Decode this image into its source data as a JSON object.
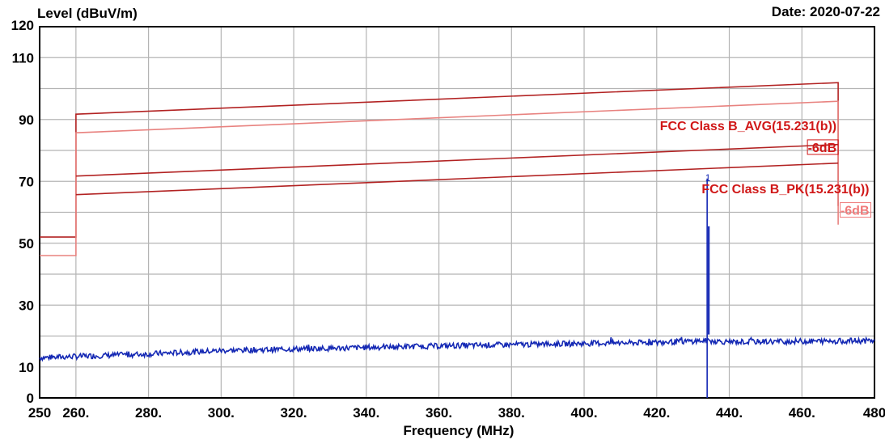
{
  "chart_data": {
    "type": "line",
    "ylabel": "Level (dBuV/m)",
    "xlabel": "Frequency (MHz)",
    "date_text": "Date: 2020-07-22",
    "xlim": [
      250,
      480
    ],
    "ylim": [
      0,
      120
    ],
    "x_ticks": [
      {
        "value": 250,
        "label": "250"
      },
      {
        "value": 260,
        "label": "260."
      },
      {
        "value": 280,
        "label": "280."
      },
      {
        "value": 300,
        "label": "300."
      },
      {
        "value": 320,
        "label": "320."
      },
      {
        "value": 340,
        "label": "340."
      },
      {
        "value": 360,
        "label": "360."
      },
      {
        "value": 380,
        "label": "380."
      },
      {
        "value": 400,
        "label": "400."
      },
      {
        "value": 420,
        "label": "420."
      },
      {
        "value": 440,
        "label": "440."
      },
      {
        "value": 460,
        "label": "460."
      },
      {
        "value": 480,
        "label": "480"
      }
    ],
    "x_grid": [
      260,
      280,
      300,
      320,
      340,
      360,
      380,
      400,
      420,
      440,
      460
    ],
    "y_ticks": [
      {
        "value": 0,
        "label": "0"
      },
      {
        "value": 10,
        "label": "10"
      },
      {
        "value": 30,
        "label": "30"
      },
      {
        "value": 50,
        "label": "50"
      },
      {
        "value": 70,
        "label": "70"
      },
      {
        "value": 90,
        "label": "90"
      },
      {
        "value": 110,
        "label": "110"
      },
      {
        "value": 120,
        "label": "120"
      }
    ],
    "y_grid": [
      10,
      20,
      30,
      40,
      50,
      60,
      70,
      80,
      90,
      100,
      110
    ],
    "grid": true,
    "limit_lines": [
      {
        "name": "PK limit",
        "color": "#b22222",
        "x": [
          250,
          260,
          260,
          470,
          470
        ],
        "y": [
          52,
          52,
          91.7,
          101.9,
          62
        ]
      },
      {
        "name": "PK limit -6dB",
        "color": "#e8827f",
        "x": [
          250,
          260,
          260,
          470,
          470
        ],
        "y": [
          46,
          46,
          85.7,
          95.9,
          56
        ]
      },
      {
        "name": "AVG limit",
        "color": "#b22222",
        "x": [
          260,
          470
        ],
        "y": [
          71.7,
          81.9
        ]
      },
      {
        "name": "AVG limit -6dB",
        "color": "#b22222",
        "x": [
          260,
          470
        ],
        "y": [
          65.7,
          75.9
        ]
      }
    ],
    "limit_labels": [
      {
        "text": "FCC Class B_AVG(15.231(b))",
        "x": 470,
        "y": 86.5,
        "color": "#d01818",
        "boxed": false
      },
      {
        "text": "-6dB",
        "x": 470,
        "y": 79.5,
        "color": "#d01818",
        "boxed": true
      },
      {
        "text": "FCC Class B_PK(15.231(b))",
        "x": 479,
        "y": 66.2,
        "color": "#d01818",
        "boxed": false
      },
      {
        "text": "-6dB",
        "x": 479,
        "y": 59.2,
        "color": "#f07a7a",
        "boxed": true
      }
    ],
    "trace": {
      "color": "#1428b4",
      "x": [
        250,
        260,
        280,
        295,
        300,
        320,
        340,
        360,
        380,
        400,
        420,
        433.5,
        440,
        460,
        480
      ],
      "y": [
        13.0,
        13.4,
        14.2,
        15.0,
        15.3,
        15.8,
        16.3,
        16.8,
        17.2,
        17.6,
        17.9,
        18.5,
        18.1,
        18.3,
        18.5
      ]
    },
    "peak": {
      "x": 433.9,
      "y": 70.9,
      "label": "1",
      "color": "#1428b4",
      "marker_floor": 0,
      "secondary_y": 55.5
    }
  }
}
